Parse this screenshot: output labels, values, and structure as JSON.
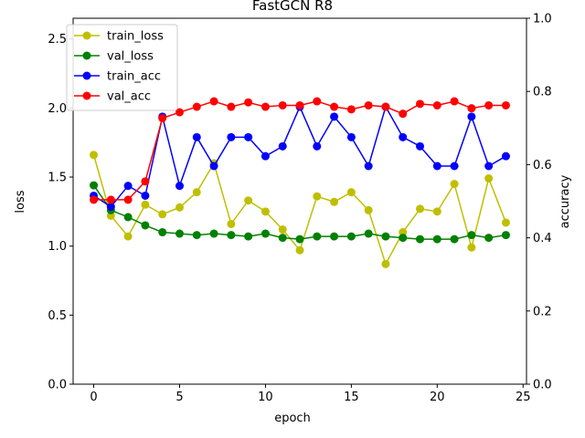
{
  "chart_data": {
    "type": "line",
    "title": "FastGCN R8",
    "xlabel": "epoch",
    "ylabel": "loss",
    "y2label": "accuracy",
    "xlim": [
      -1.2,
      25.2
    ],
    "ylim": [
      0,
      2.65
    ],
    "y2lim": [
      0,
      1.0
    ],
    "xticks": [
      0,
      5,
      10,
      15,
      20,
      25
    ],
    "yticks": [
      0.0,
      0.5,
      1.0,
      1.5,
      2.0,
      2.5
    ],
    "y2ticks": [
      0.0,
      0.2,
      0.4,
      0.6,
      0.8,
      1.0
    ],
    "legend_position": "top-left",
    "x": [
      0,
      1,
      2,
      3,
      4,
      5,
      6,
      7,
      8,
      9,
      10,
      11,
      12,
      13,
      14,
      15,
      16,
      17,
      18,
      19,
      20,
      21,
      22,
      23,
      24
    ],
    "series": [
      {
        "name": "train_loss",
        "axis": "left",
        "color": "#bfbf00",
        "values": [
          1.66,
          1.22,
          1.07,
          1.3,
          1.23,
          1.28,
          1.39,
          1.6,
          1.16,
          1.33,
          1.25,
          1.12,
          0.97,
          1.36,
          1.32,
          1.39,
          1.26,
          0.87,
          1.1,
          1.27,
          1.25,
          1.45,
          0.99,
          1.49,
          1.17
        ]
      },
      {
        "name": "val_loss",
        "axis": "left",
        "color": "#008000",
        "values": [
          1.44,
          1.26,
          1.21,
          1.15,
          1.1,
          1.09,
          1.08,
          1.09,
          1.08,
          1.07,
          1.09,
          1.06,
          1.05,
          1.07,
          1.07,
          1.07,
          1.09,
          1.07,
          1.06,
          1.05,
          1.05,
          1.05,
          1.08,
          1.06,
          1.08
        ]
      },
      {
        "name": "train_acc",
        "axis": "right",
        "color": "#0000ff",
        "values": [
          0.515,
          0.485,
          0.542,
          0.515,
          0.731,
          0.542,
          0.675,
          0.596,
          0.675,
          0.675,
          0.623,
          0.65,
          0.758,
          0.65,
          0.731,
          0.675,
          0.596,
          0.758,
          0.675,
          0.65,
          0.596,
          0.596,
          0.731,
          0.596,
          0.623
        ]
      },
      {
        "name": "val_acc",
        "axis": "right",
        "color": "#ff0000",
        "values": [
          0.504,
          0.504,
          0.504,
          0.554,
          0.727,
          0.743,
          0.758,
          0.773,
          0.758,
          0.77,
          0.758,
          0.762,
          0.762,
          0.773,
          0.758,
          0.751,
          0.762,
          0.758,
          0.739,
          0.766,
          0.762,
          0.773,
          0.754,
          0.762,
          0.762
        ]
      }
    ]
  }
}
